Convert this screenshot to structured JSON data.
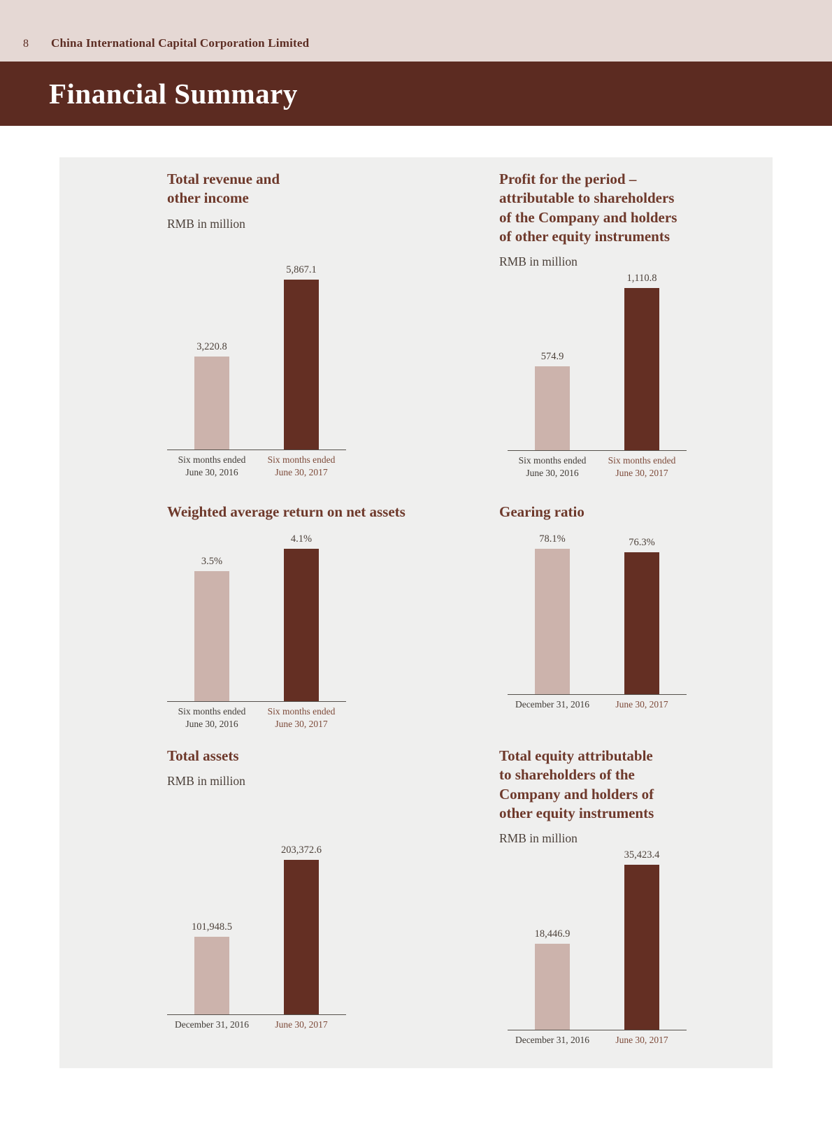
{
  "page": {
    "page_number": "8",
    "company": "China International Capital Corporation Limited",
    "section_title": "Financial Summary"
  },
  "colors": {
    "header_band": "#e5d8d4",
    "banner": "#5c2b21",
    "panel": "#efefee",
    "bar_2016": "#ccb3ac",
    "bar_2017": "#642f23",
    "heading": "#6e392b",
    "axis_label_2016": "#403b36",
    "axis_label_2017": "#7d4a39"
  },
  "chart_data": [
    {
      "type": "bar",
      "title": "Total revenue and\nother income",
      "subtitle": "RMB in million",
      "categories": [
        "Six months ended\nJune 30, 2016",
        "Six months ended\nJune 30, 2017"
      ],
      "values": [
        3220.8,
        5867.1
      ],
      "value_labels": [
        "3,220.8",
        "5,867.1"
      ]
    },
    {
      "type": "bar",
      "title": "Profit for the period –\nattributable to shareholders\nof the Company and holders\nof other equity instruments",
      "subtitle": "RMB in million",
      "categories": [
        "Six months ended\nJune 30, 2016",
        "Six months ended\nJune 30, 2017"
      ],
      "values": [
        574.9,
        1110.8
      ],
      "value_labels": [
        "574.9",
        "1,110.8"
      ]
    },
    {
      "type": "bar",
      "title": "Weighted average return on net assets",
      "subtitle": "",
      "categories": [
        "Six months ended\nJune 30, 2016",
        "Six months ended\nJune 30, 2017"
      ],
      "values": [
        3.5,
        4.1
      ],
      "value_labels": [
        "3.5%",
        "4.1%"
      ]
    },
    {
      "type": "bar",
      "title": "Gearing ratio",
      "subtitle": "",
      "categories": [
        "December 31, 2016",
        "June 30, 2017"
      ],
      "values": [
        78.1,
        76.3
      ],
      "value_labels": [
        "78.1%",
        "76.3%"
      ]
    },
    {
      "type": "bar",
      "title": "Total assets",
      "subtitle": "RMB in million",
      "categories": [
        "December 31, 2016",
        "June 30, 2017"
      ],
      "values": [
        101948.5,
        203372.6
      ],
      "value_labels": [
        "101,948.5",
        "203,372.6"
      ]
    },
    {
      "type": "bar",
      "title": "Total equity attributable\nto shareholders of the\nCompany and holders of\nother equity instruments",
      "subtitle": "RMB in million",
      "categories": [
        "December 31, 2016",
        "June 30, 2017"
      ],
      "values": [
        18446.9,
        35423.4
      ],
      "value_labels": [
        "18,446.9",
        "35,423.4"
      ]
    }
  ]
}
